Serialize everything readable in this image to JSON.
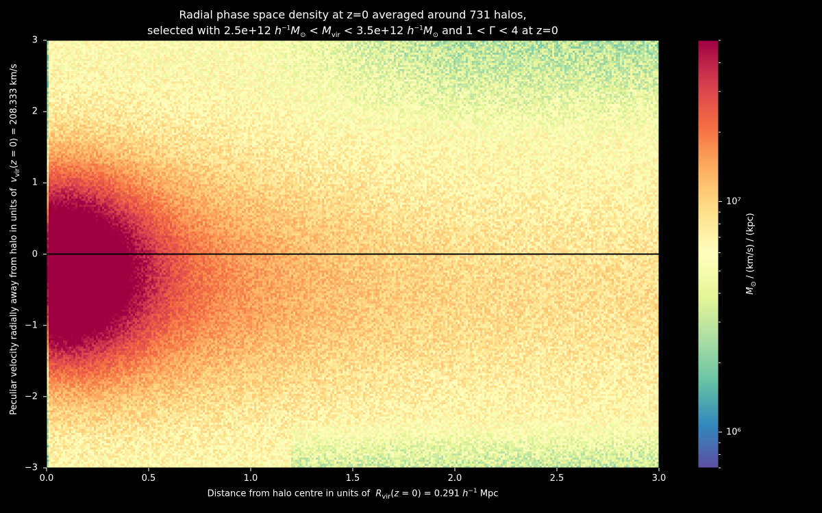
{
  "chart_data": {
    "type": "heatmap",
    "title_line1": "Radial phase space density at z=0 averaged around 731 halos,",
    "title_line2": "selected with 2.5e+12 h⁻¹M☉ < Mvir < 3.5e+12 h⁻¹M☉ and 1 < Γ < 4 at z=0",
    "xlabel": "Distance from halo centre in units of  Rvir(z = 0) = 0.291 h⁻¹ Mpc",
    "ylabel": "Peculiar velocity radially away from halo in units of  vvir(z = 0) = 208.333 km/s",
    "xlim": [
      0.0,
      3.0
    ],
    "ylim": [
      -3,
      3
    ],
    "x_ticks": [
      "0.0",
      "0.5",
      "1.0",
      "1.5",
      "2.0",
      "2.5",
      "3.0"
    ],
    "y_ticks": [
      "3",
      "2",
      "1",
      "0",
      "−1",
      "−2",
      "−3"
    ],
    "hline_y": 0,
    "colorbar": {
      "label": "M☉ / (km/s) / (kpc)",
      "scale": "log",
      "range": [
        700000,
        50000000
      ],
      "major_ticks": [
        {
          "value": 1000000,
          "label": "10⁶"
        },
        {
          "value": 10000000,
          "label": "10⁷"
        }
      ],
      "colormap": "Spectral_r"
    }
  },
  "colors": {
    "background": "#000000",
    "text": "#ffffff",
    "zero_line": "#000000"
  }
}
